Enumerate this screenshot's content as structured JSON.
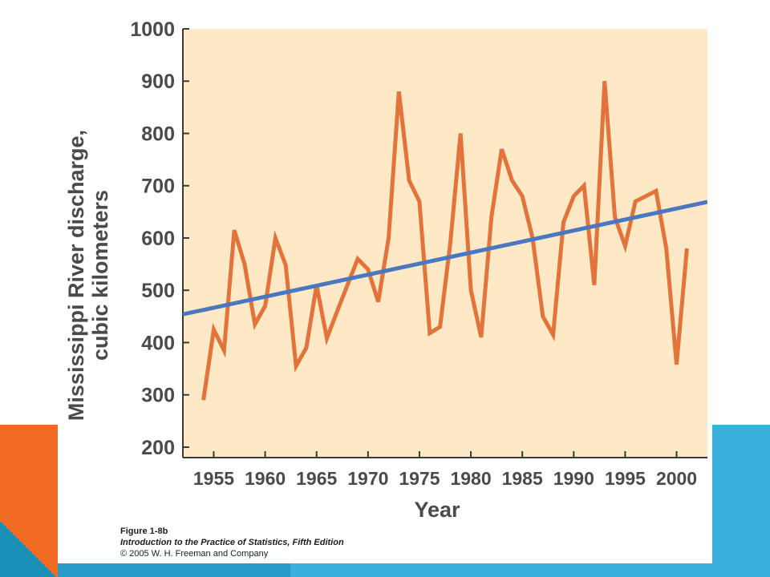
{
  "slide": {
    "colors": {
      "accent_orange": "#f26b22",
      "accent_blue": "#3bb0de",
      "plot_background": "#fde9c6",
      "data_line": "#e2733a",
      "trend_line": "#4a78c0"
    }
  },
  "caption": {
    "figure": "Figure 1-8b",
    "book": "Introduction to the Practice of Statistics, Fifth Edition",
    "copyright": "© 2005 W. H. Freeman and Company"
  },
  "chart_data": {
    "type": "line",
    "xlabel": "Year",
    "ylabel_line1": "Mississippi River discharge,",
    "ylabel_line2": "cubic kilometers",
    "xlim": [
      1952,
      2003
    ],
    "ylim": [
      180,
      1000
    ],
    "x_ticks": [
      "1955",
      "1960",
      "1965",
      "1970",
      "1975",
      "1980",
      "1985",
      "1990",
      "1995",
      "2000"
    ],
    "x_tick_values": [
      1955,
      1960,
      1965,
      1970,
      1975,
      1980,
      1985,
      1990,
      1995,
      2000
    ],
    "y_ticks": [
      "200",
      "300",
      "400",
      "500",
      "600",
      "700",
      "800",
      "900",
      "1000"
    ],
    "y_tick_values": [
      200,
      300,
      400,
      500,
      600,
      700,
      800,
      900,
      1000
    ],
    "grid": false,
    "series": [
      {
        "x": [
          1954,
          1955,
          1956,
          1957,
          1958,
          1959,
          1960,
          1961,
          1962,
          1963,
          1964,
          1965,
          1966,
          1967,
          1968,
          1969,
          1970,
          1971,
          1972,
          1973,
          1974,
          1975,
          1976,
          1977,
          1978,
          1979,
          1980,
          1981,
          1982,
          1983,
          1984,
          1985,
          1986,
          1987,
          1988,
          1989,
          1990,
          1991,
          1992,
          1993,
          1994,
          1995,
          1996,
          1997,
          1998,
          1999,
          2000,
          2001
        ],
        "values": [
          290,
          425,
          385,
          615,
          550,
          435,
          470,
          600,
          548,
          355,
          390,
          510,
          408,
          460,
          510,
          560,
          540,
          478,
          600,
          880,
          710,
          670,
          418,
          430,
          590,
          800,
          500,
          410,
          640,
          770,
          710,
          680,
          600,
          450,
          415,
          630,
          680,
          700,
          510,
          900,
          640,
          585,
          670,
          680,
          690,
          580,
          358,
          580
        ],
        "color": "#e2733a"
      },
      {
        "x": [
          1952,
          2003
        ],
        "values": [
          454,
          669
        ],
        "color": "#4a78c0"
      }
    ]
  }
}
